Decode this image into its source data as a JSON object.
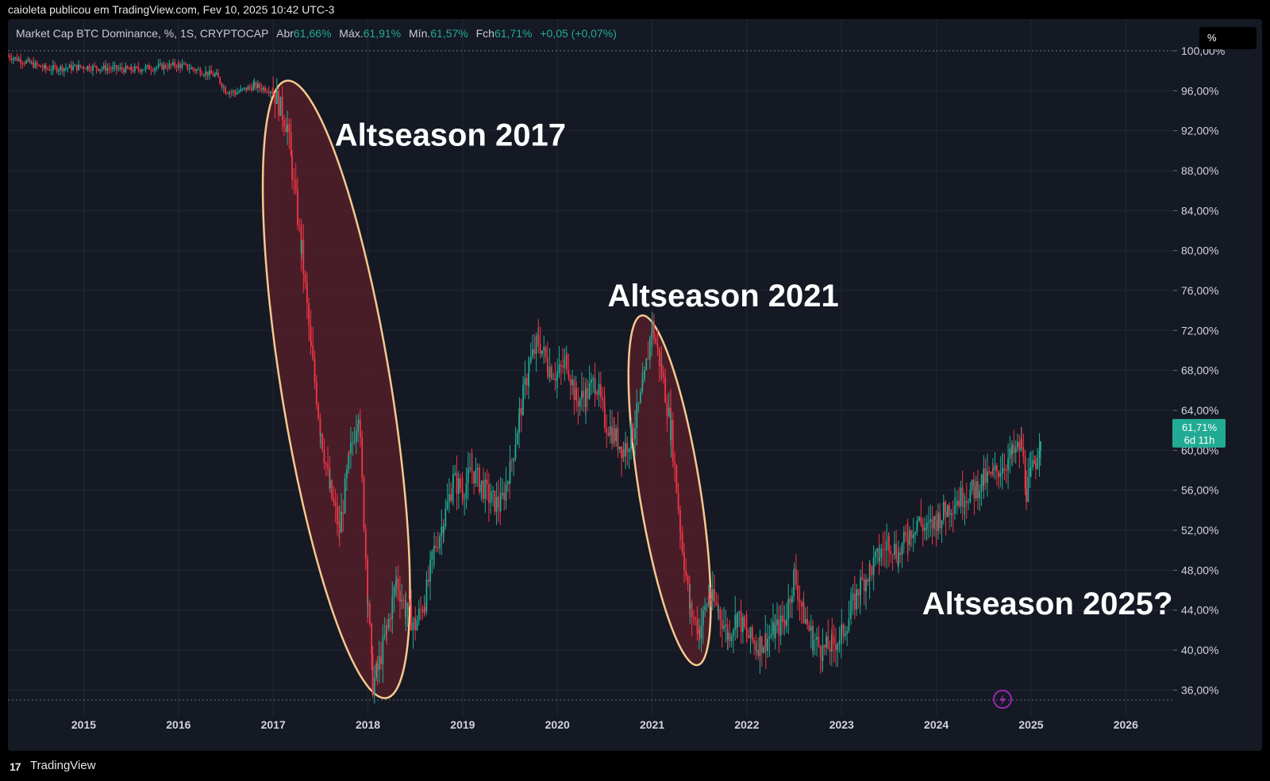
{
  "header": {
    "text": "caioleta publicou em TradingView.com, Fev 10, 2025 10:42 UTC-3"
  },
  "legend": {
    "symbol": "Market Cap BTC Dominance, %, 1S, CRYPTOCAP",
    "open_label": "Abr",
    "open_value": "61,66%",
    "high_label": "Máx.",
    "high_value": "61,91%",
    "low_label": "Mín.",
    "low_value": "61,57%",
    "close_label": "Fch",
    "close_value": "61,71%",
    "change": "+0,05 (+0,07%)"
  },
  "scale_button": "%",
  "price_tag": {
    "value": "61,71%",
    "countdown": "6d 11h"
  },
  "footer": {
    "brand": "TradingView",
    "logo_text": "17"
  },
  "colors": {
    "up": "#22ab94",
    "down": "#f23645",
    "background": "#151924",
    "ellipse_stroke": "#f6c98e",
    "ellipse_fill": "#5a1f2a",
    "annotation_text": "#ffffff",
    "lightning": "#9c27b0"
  },
  "chart_data": {
    "type": "candlestick",
    "x_ticks": [
      "2015",
      "2016",
      "2017",
      "2018",
      "2019",
      "2020",
      "2021",
      "2022",
      "2023",
      "2024",
      "2025",
      "2026"
    ],
    "y_ticks": [
      "36,00%",
      "40,00%",
      "44,00%",
      "48,00%",
      "52,00%",
      "56,00%",
      "60,00%",
      "64,00%",
      "68,00%",
      "72,00%",
      "76,00%",
      "80,00%",
      "84,00%",
      "88,00%",
      "92,00%",
      "96,00%",
      "100,00%"
    ],
    "ylim": [
      35,
      100
    ],
    "xlim": [
      2014.2,
      2026.5
    ],
    "last_value": 61.71,
    "series": [
      {
        "x": [
          2014.2,
          2014.6,
          2015.0,
          2015.5,
          2016.0,
          2016.4,
          2016.5,
          2016.6,
          2016.8,
          2017.0,
          2017.15,
          2017.2,
          2017.3,
          2017.4,
          2017.5,
          2017.6,
          2017.7,
          2017.8,
          2017.9,
          2018.0,
          2018.05,
          2018.1,
          2018.2,
          2018.3,
          2018.4,
          2018.5,
          2018.6,
          2018.7,
          2018.8,
          2018.9,
          2019.0,
          2019.1,
          2019.2,
          2019.3,
          2019.4,
          2019.5,
          2019.6,
          2019.7,
          2019.8,
          2019.9,
          2020.0,
          2020.1,
          2020.2,
          2020.3,
          2020.4,
          2020.5,
          2020.6,
          2020.7,
          2020.8,
          2020.9,
          2021.0,
          2021.1,
          2021.2,
          2021.3,
          2021.4,
          2021.5,
          2021.6,
          2021.7,
          2021.8,
          2021.9,
          2022.0,
          2022.1,
          2022.2,
          2022.3,
          2022.4,
          2022.5,
          2022.6,
          2022.7,
          2022.8,
          2022.9,
          2023.0,
          2023.1,
          2023.2,
          2023.3,
          2023.4,
          2023.5,
          2023.6,
          2023.7,
          2023.8,
          2023.9,
          2024.0,
          2024.1,
          2024.2,
          2024.3,
          2024.4,
          2024.5,
          2024.6,
          2024.7,
          2024.8,
          2024.9,
          2024.95,
          2025.0,
          2025.05,
          2025.1
        ],
        "y": [
          99.5,
          98.2,
          98.4,
          98.1,
          98.6,
          97.5,
          96.0,
          95.8,
          96.5,
          96.0,
          92.5,
          88.0,
          80.0,
          70.0,
          62.0,
          56.0,
          52.0,
          59.0,
          64.0,
          45.0,
          36.5,
          38.0,
          42.0,
          47.0,
          44.0,
          42.5,
          45.0,
          50.0,
          53.0,
          57.0,
          56.0,
          58.0,
          56.5,
          55.0,
          54.5,
          58.0,
          63.5,
          68.5,
          71.0,
          68.5,
          67.5,
          69.0,
          65.0,
          65.5,
          67.0,
          63.0,
          61.5,
          60.0,
          62.0,
          66.0,
          72.5,
          68.0,
          62.0,
          52.0,
          44.0,
          42.0,
          45.5,
          44.0,
          41.5,
          43.5,
          41.5,
          40.5,
          41.0,
          42.0,
          43.0,
          47.5,
          43.5,
          41.0,
          40.0,
          40.5,
          41.5,
          44.0,
          46.5,
          48.0,
          49.5,
          51.0,
          49.5,
          51.5,
          53.0,
          52.0,
          53.0,
          54.0,
          55.0,
          55.5,
          56.0,
          57.0,
          57.5,
          58.5,
          59.5,
          60.5,
          56.0,
          57.5,
          59.0,
          61.71
        ]
      }
    ],
    "annotations": [
      {
        "text": "Altseason 2017"
      },
      {
        "text": "Altseason 2021"
      },
      {
        "text": "Altseason 2025?"
      }
    ],
    "highlight_regions": [
      {
        "label": "Altseason 2017",
        "x_range": [
          2016.8,
          2018.5
        ],
        "y_range": [
          35.2,
          97.0
        ]
      },
      {
        "label": "Altseason 2021",
        "x_range": [
          2020.7,
          2021.65
        ],
        "y_range": [
          38.5,
          73.5
        ]
      }
    ],
    "grid": true
  }
}
